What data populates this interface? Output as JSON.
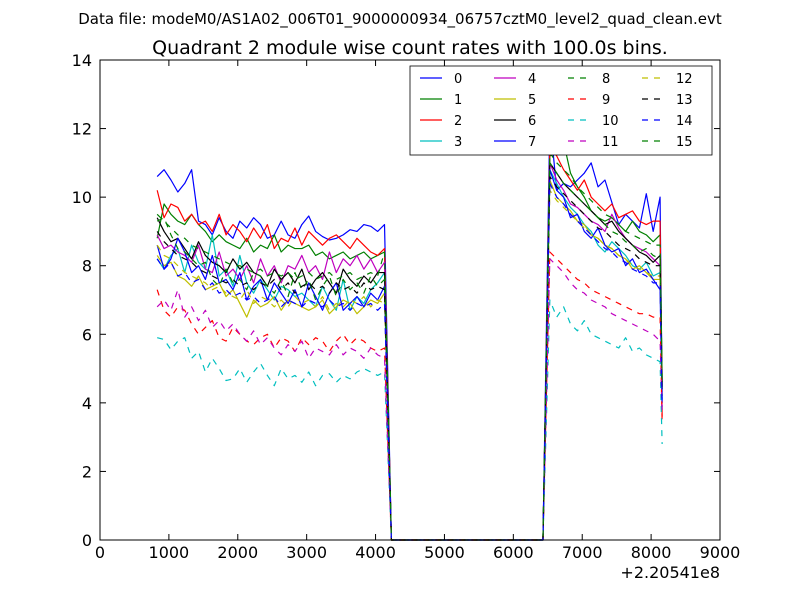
{
  "suptitle": "Data file: modeM0/AS1A02_006T01_9000000934_06757cztM0_level2_quad_clean.evt",
  "chart_data": {
    "type": "line",
    "title": "Quadrant 2 module wise count rates with 100.0s bins.",
    "xlabel": "",
    "ylabel": "",
    "x_offset_text": "+2.20541e8",
    "xlim": [
      0,
      9000
    ],
    "ylim": [
      0,
      14
    ],
    "xticks": [
      0,
      1000,
      2000,
      3000,
      4000,
      5000,
      6000,
      7000,
      8000,
      9000
    ],
    "yticks": [
      0,
      2,
      4,
      6,
      8,
      10,
      12,
      14
    ],
    "legend_position": "top-right",
    "legend_columns": 4,
    "segments": {
      "seg1_x_start": 830,
      "seg1_x_end": 4130,
      "bin": 100,
      "drop_x": [
        4230,
        6430
      ],
      "seg2_x_start": 6530,
      "seg2_x_end": 8130,
      "tail_x": 8160
    },
    "series": [
      {
        "name": "0",
        "style": "solid",
        "color": "#0000ff",
        "seg1": [
          10.6,
          10.8,
          10.5,
          10.15,
          10.4,
          10.8,
          9.3,
          9.2,
          8.9,
          9.4,
          9.0,
          8.8,
          9.3,
          9.1,
          9.4,
          9.2,
          8.8,
          8.9,
          9.3,
          8.9,
          8.8,
          9.2,
          9.45,
          9.0,
          8.85,
          8.75,
          8.8,
          8.9,
          9.05,
          9.0,
          9.2,
          9.15,
          9.0,
          9.2
        ],
        "seg2": [
          12.3,
          10.2,
          10.4,
          10.3,
          10.5,
          10.7,
          11.0,
          10.3,
          10.5,
          9.85,
          9.2,
          9.5,
          9.3,
          9.1,
          10.1,
          9.0,
          10.0
        ],
        "tail": 4.2
      },
      {
        "name": "1",
        "style": "solid",
        "color": "#008000",
        "seg1": [
          8.8,
          9.8,
          9.5,
          9.3,
          9.2,
          9.5,
          9.2,
          9.0,
          8.7,
          8.9,
          8.7,
          8.6,
          8.5,
          8.8,
          8.4,
          8.6,
          8.5,
          8.9,
          8.4,
          8.6,
          8.5,
          8.5,
          8.6,
          8.3,
          8.4,
          8.2,
          8.3,
          8.4,
          8.2,
          8.3,
          8.4,
          8.2,
          8.3,
          8.4
        ],
        "seg2": [
          11.2,
          11.3,
          11.6,
          10.7,
          10.3,
          10.0,
          9.6,
          9.4,
          9.3,
          9.4,
          9.2,
          9.0,
          9.3,
          9.0,
          8.9,
          8.7,
          8.9
        ],
        "tail": 4.6
      },
      {
        "name": "2",
        "style": "solid",
        "color": "#ff0000",
        "seg1": [
          10.2,
          9.4,
          9.8,
          9.7,
          9.3,
          9.5,
          9.2,
          9.3,
          9.0,
          9.5,
          8.9,
          9.2,
          9.0,
          8.7,
          9.1,
          8.8,
          9.2,
          8.5,
          8.8,
          8.7,
          9.1,
          8.6,
          9.0,
          8.8,
          8.6,
          8.8,
          8.9,
          8.7,
          8.5,
          8.8,
          8.6,
          8.4,
          8.3,
          8.5
        ],
        "seg2": [
          11.5,
          11.2,
          10.8,
          10.5,
          10.2,
          10.5,
          10.0,
          9.8,
          9.6,
          9.8,
          9.4,
          9.5,
          9.6,
          9.3,
          9.2,
          9.3,
          9.3
        ],
        "tail": 3.6
      },
      {
        "name": "3",
        "style": "solid",
        "color": "#00bfbf",
        "seg1": [
          8.2,
          7.9,
          8.3,
          8.5,
          7.8,
          8.6,
          8.1,
          7.9,
          8.9,
          7.7,
          7.9,
          7.4,
          8.3,
          7.5,
          7.2,
          7.6,
          7.3,
          7.0,
          7.4,
          7.3,
          7.1,
          7.2,
          7.0,
          6.8,
          7.4,
          7.0,
          6.7,
          7.6,
          6.7,
          7.1,
          6.9,
          7.3,
          7.5,
          7.8
        ],
        "seg2": [
          10.8,
          10.4,
          10.0,
          9.7,
          9.5,
          9.2,
          9.0,
          8.6,
          8.4,
          8.7,
          8.5,
          8.3,
          8.0,
          7.9,
          8.1,
          7.7,
          7.8
        ],
        "tail": 4.1
      },
      {
        "name": "4",
        "style": "solid",
        "color": "#bf00bf",
        "seg1": [
          8.9,
          8.5,
          8.6,
          8.4,
          8.3,
          8.1,
          8.6,
          7.9,
          7.8,
          8.4,
          7.7,
          7.9,
          7.6,
          8.0,
          7.5,
          8.2,
          7.7,
          8.0,
          7.5,
          8.0,
          7.9,
          8.3,
          7.8,
          8.0,
          7.6,
          8.4,
          7.8,
          8.2,
          8.0,
          8.3,
          7.9,
          8.2,
          7.8,
          8.1
        ],
        "seg2": [
          11.0,
          10.5,
          10.2,
          9.8,
          9.7,
          9.5,
          9.3,
          9.2,
          9.0,
          9.5,
          9.1,
          8.8,
          8.6,
          8.5,
          8.4,
          8.2,
          8.0
        ],
        "tail": 4.6
      },
      {
        "name": "5",
        "style": "solid",
        "color": "#bfbf00",
        "seg1": [
          8.3,
          8.0,
          8.1,
          7.7,
          7.6,
          7.4,
          7.7,
          7.3,
          7.4,
          7.5,
          7.1,
          7.3,
          6.9,
          6.5,
          7.0,
          6.8,
          6.9,
          7.1,
          6.7,
          7.0,
          6.9,
          6.8,
          6.7,
          6.8,
          7.0,
          6.6,
          6.8,
          7.0,
          6.9,
          6.6,
          6.8,
          7.0,
          6.9,
          7.2
        ],
        "seg2": [
          10.5,
          10.0,
          9.8,
          9.6,
          9.3,
          9.2,
          8.9,
          8.8,
          8.6,
          8.5,
          8.3,
          8.2,
          7.9,
          8.0,
          7.8,
          7.6,
          7.6
        ],
        "tail": 4.8
      },
      {
        "name": "6",
        "style": "solid",
        "color": "#000000",
        "seg1": [
          9.4,
          9.0,
          8.7,
          8.8,
          8.5,
          8.2,
          8.7,
          8.3,
          8.1,
          8.0,
          7.8,
          8.2,
          7.9,
          8.1,
          7.8,
          7.7,
          7.4,
          7.9,
          7.6,
          7.8,
          7.5,
          7.9,
          7.3,
          7.6,
          7.8,
          7.5,
          7.2,
          7.9,
          7.6,
          7.4,
          7.7,
          7.5,
          7.8,
          7.8
        ],
        "seg2": [
          11.0,
          10.7,
          10.4,
          10.2,
          10.0,
          9.8,
          9.6,
          9.4,
          9.2,
          9.3,
          9.0,
          8.8,
          8.6,
          8.4,
          8.3,
          8.1,
          8.3
        ],
        "tail": 4.4
      },
      {
        "name": "7",
        "style": "solid",
        "color": "#0000ff",
        "seg1": [
          8.6,
          7.9,
          8.2,
          8.8,
          8.4,
          7.8,
          8.0,
          7.6,
          8.3,
          7.5,
          7.6,
          7.3,
          7.8,
          7.0,
          7.4,
          7.6,
          7.0,
          7.5,
          7.2,
          6.9,
          7.3,
          6.8,
          7.5,
          7.1,
          6.7,
          7.2,
          7.5,
          6.7,
          6.9,
          7.1,
          6.8,
          7.2,
          7.0,
          7.4
        ],
        "seg2": [
          10.8,
          10.2,
          10.0,
          9.4,
          9.5,
          9.0,
          8.8,
          9.1,
          8.6,
          8.4,
          8.5,
          8.0,
          8.2,
          7.8,
          7.9,
          7.6,
          7.3
        ],
        "tail": 4.0
      },
      {
        "name": "8",
        "style": "dashed",
        "color": "#008000",
        "seg1": [
          9.3,
          9.4,
          8.9,
          8.5,
          8.4,
          8.2,
          8.0,
          8.1,
          7.6,
          7.4,
          7.9,
          7.5,
          7.6,
          7.3,
          7.8,
          7.7,
          7.4,
          7.2,
          7.6,
          7.1,
          7.8,
          7.3,
          7.6,
          7.0,
          7.4,
          7.7,
          7.1,
          7.6,
          7.3,
          7.5,
          7.2,
          7.7,
          7.4,
          7.6
        ],
        "seg2": [
          11.0,
          10.7,
          10.4,
          10.2,
          10.0,
          9.8,
          9.6,
          9.4,
          9.2,
          9.0,
          8.9,
          8.7,
          8.6,
          8.4,
          8.5,
          8.3,
          8.2
        ],
        "tail": 4.5
      },
      {
        "name": "9",
        "style": "dashed",
        "color": "#ff0000",
        "seg1": [
          7.3,
          6.7,
          6.5,
          6.8,
          6.7,
          6.3,
          6.0,
          6.2,
          6.4,
          5.9,
          5.8,
          6.2,
          6.0,
          5.8,
          5.7,
          5.9,
          6.0,
          5.6,
          5.9,
          5.8,
          5.5,
          5.9,
          5.7,
          5.9,
          5.8,
          5.5,
          5.8,
          6.0,
          5.7,
          5.9,
          5.8,
          5.6,
          5.5,
          5.6
        ],
        "seg2": [
          8.4,
          8.2,
          8.0,
          7.8,
          7.6,
          7.5,
          7.3,
          7.2,
          7.1,
          7.0,
          6.9,
          6.8,
          6.7,
          6.6,
          6.6,
          6.5,
          6.5
        ],
        "tail": 3.4
      },
      {
        "name": "10",
        "style": "dashed",
        "color": "#00bfbf",
        "seg1": [
          5.9,
          5.85,
          5.55,
          5.8,
          5.9,
          5.3,
          5.5,
          4.9,
          5.3,
          5.0,
          4.65,
          4.7,
          5.0,
          4.6,
          4.9,
          5.15,
          4.8,
          4.5,
          5.0,
          4.7,
          4.8,
          4.6,
          4.9,
          4.5,
          4.8,
          4.85,
          4.6,
          4.8,
          4.7,
          4.9,
          5.0,
          4.9,
          4.8,
          4.9
        ],
        "seg2": [
          7.0,
          6.5,
          6.8,
          6.3,
          6.1,
          6.4,
          6.0,
          5.9,
          5.8,
          5.7,
          5.6,
          5.9,
          5.5,
          5.6,
          5.4,
          5.3,
          5.2
        ],
        "tail": 2.8
      },
      {
        "name": "11",
        "style": "dashed",
        "color": "#bf00bf",
        "seg1": [
          6.8,
          7.0,
          6.7,
          7.3,
          6.5,
          6.8,
          6.4,
          6.7,
          6.2,
          6.4,
          6.1,
          6.3,
          6.0,
          5.8,
          6.1,
          5.7,
          5.9,
          5.6,
          5.4,
          5.7,
          5.5,
          5.8,
          5.3,
          5.6,
          5.5,
          5.4,
          5.7,
          5.4,
          5.6,
          5.5,
          5.3,
          5.6,
          5.4,
          5.3
        ],
        "seg2": [
          8.2,
          8.0,
          7.8,
          7.5,
          7.3,
          7.2,
          7.0,
          6.9,
          6.8,
          6.6,
          6.5,
          6.4,
          6.3,
          6.2,
          6.1,
          6.0,
          5.8
        ],
        "tail": 3.8
      },
      {
        "name": "12",
        "style": "dashed",
        "color": "#bfbf00",
        "seg1": [
          8.6,
          8.3,
          8.2,
          8.0,
          7.8,
          7.7,
          7.6,
          7.5,
          7.3,
          7.4,
          7.2,
          7.1,
          7.0,
          7.3,
          6.9,
          7.1,
          7.0,
          6.8,
          7.0,
          6.8,
          7.1,
          6.9,
          7.0,
          6.8,
          7.1,
          6.7,
          6.9,
          6.8,
          7.0,
          6.9,
          7.1,
          6.8,
          7.0,
          6.9
        ],
        "seg2": [
          10.2,
          9.9,
          9.7,
          9.5,
          9.3,
          9.1,
          8.9,
          8.8,
          8.6,
          8.5,
          8.3,
          8.2,
          8.0,
          7.9,
          7.8,
          7.7,
          7.7
        ],
        "tail": 4.2
      },
      {
        "name": "13",
        "style": "dashed",
        "color": "#000000",
        "seg1": [
          9.0,
          8.7,
          8.5,
          8.3,
          8.2,
          8.1,
          7.9,
          7.8,
          7.7,
          7.6,
          7.5,
          7.6,
          7.4,
          7.5,
          7.3,
          7.5,
          7.4,
          7.6,
          7.3,
          7.5,
          7.2,
          7.4,
          7.5,
          7.3,
          7.4,
          7.2,
          7.5,
          7.3,
          7.4,
          7.2,
          7.5,
          7.3,
          7.4,
          7.3
        ],
        "seg2": [
          10.6,
          10.3,
          10.1,
          9.9,
          9.7,
          9.5,
          9.3,
          9.1,
          9.0,
          8.8,
          8.6,
          8.5,
          8.4,
          8.2,
          8.1,
          8.0,
          8.0
        ],
        "tail": 4.3
      },
      {
        "name": "14",
        "style": "dashed",
        "color": "#0000ff",
        "seg1": [
          8.2,
          7.9,
          8.1,
          7.7,
          7.8,
          7.5,
          7.6,
          7.3,
          7.5,
          7.2,
          7.3,
          7.1,
          7.2,
          7.0,
          7.1,
          6.9,
          7.0,
          7.1,
          6.8,
          7.0,
          6.9,
          6.8,
          7.0,
          6.9,
          6.8,
          7.0,
          6.8,
          6.9,
          6.7,
          6.9,
          6.8,
          6.9,
          6.7,
          6.9
        ],
        "seg2": [
          10.4,
          10.0,
          9.8,
          9.5,
          9.3,
          9.1,
          8.9,
          8.7,
          8.5,
          8.4,
          8.2,
          8.1,
          7.9,
          7.8,
          7.7,
          7.5,
          7.5
        ],
        "tail": 3.9
      },
      {
        "name": "15",
        "style": "dashed",
        "color": "#008000",
        "seg1": [
          9.5,
          9.3,
          9.1,
          8.9,
          8.8,
          8.6,
          8.5,
          8.4,
          8.3,
          8.2,
          8.1,
          8.0,
          8.0,
          7.9,
          7.8,
          7.9,
          7.7,
          7.8,
          7.7,
          7.8,
          7.6,
          7.7,
          7.8,
          7.6,
          7.7,
          7.8,
          7.6,
          7.7,
          7.8,
          7.6,
          7.7,
          7.8,
          7.7,
          8.4
        ],
        "seg2": [
          11.3,
          11.0,
          10.8,
          10.6,
          10.3,
          10.1,
          9.9,
          9.7,
          9.5,
          9.4,
          9.2,
          9.0,
          8.9,
          8.8,
          8.7,
          8.6,
          8.6
        ],
        "tail": 4.7
      }
    ]
  }
}
